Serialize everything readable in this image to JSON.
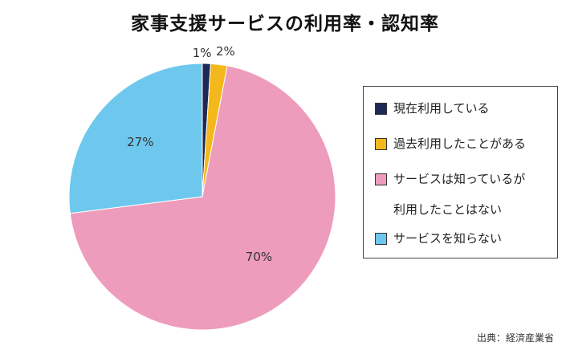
{
  "chart_data": {
    "type": "pie",
    "title": "家事支援サービスの利用率・認知率",
    "slices": [
      {
        "label": "現在利用している",
        "value": 1,
        "display": "1%",
        "color": "#1c2a55"
      },
      {
        "label": "過去利用したことがある",
        "value": 2,
        "display": "2%",
        "color": "#f5b81c"
      },
      {
        "label": "サービスは知っているが\n利用したことはない",
        "value": 70,
        "display": "70%",
        "color": "#ee9cbb"
      },
      {
        "label": "サービスを知らない",
        "value": 27,
        "display": "27%",
        "color": "#6ec8ee"
      }
    ],
    "legend_position": "right"
  },
  "source": "出典：経済産業省"
}
